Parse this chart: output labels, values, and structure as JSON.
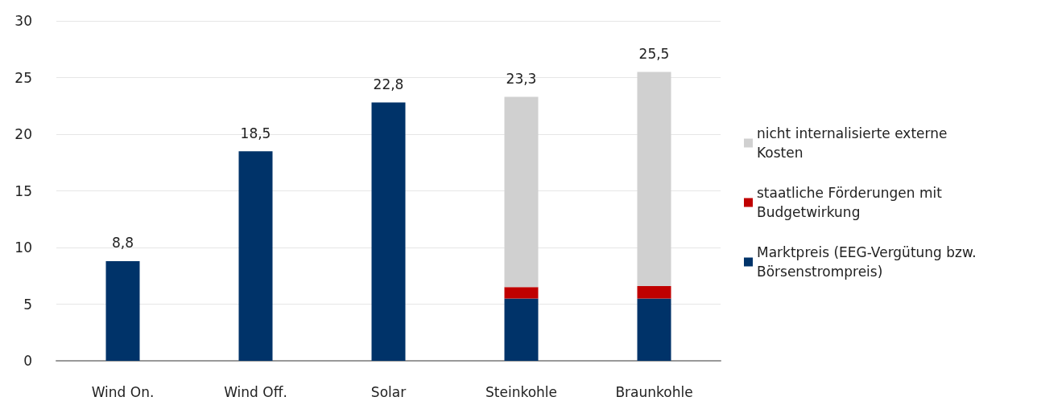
{
  "chart_data": {
    "type": "bar",
    "stacked": true,
    "categories": [
      "Wind On.",
      "Wind Off.",
      "Solar",
      "Steinkohle",
      "Braunkohle"
    ],
    "series": [
      {
        "name": "Marktpreis (EEG-Vergütung bzw. Börsenstrompreis)",
        "color": "#003369",
        "values": [
          8.8,
          18.5,
          22.8,
          5.5,
          5.5
        ]
      },
      {
        "name": "staatliche Förderungen mit Budgetwirkung",
        "color": "#c00000",
        "values": [
          null,
          null,
          null,
          1.0,
          1.1
        ]
      },
      {
        "name": "nicht internalisierte externe Kosten",
        "color": "#d0d0d0",
        "values": [
          null,
          null,
          null,
          16.8,
          18.9
        ]
      }
    ],
    "totals": [
      "8,8",
      "18,5",
      "22,8",
      "23,3",
      "25,5"
    ],
    "ylim": [
      0,
      30
    ],
    "yticks": [
      0,
      5,
      10,
      15,
      20,
      25,
      30
    ],
    "grid": "y",
    "legend": "right"
  }
}
